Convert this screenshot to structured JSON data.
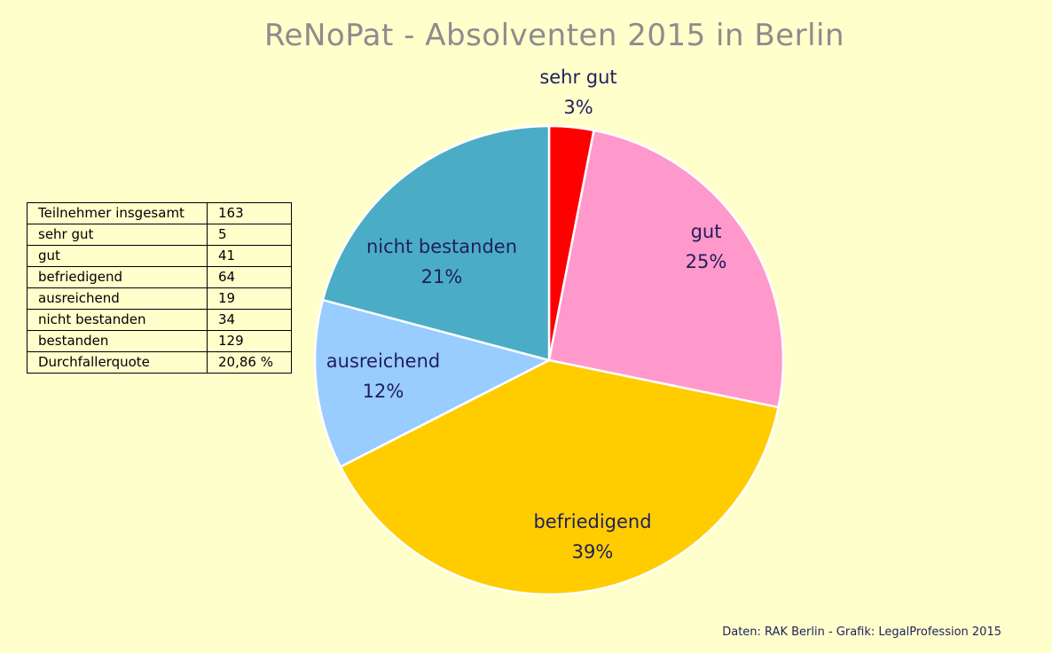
{
  "title": "ReNoPat - Absolventen 2015 in Berlin",
  "stats_table": [
    {
      "label": "Teilnehmer insgesamt",
      "value": "163"
    },
    {
      "label": "sehr gut",
      "value": "5"
    },
    {
      "label": "gut",
      "value": "41"
    },
    {
      "label": "befriedigend",
      "value": "64"
    },
    {
      "label": "ausreichend",
      "value": "19"
    },
    {
      "label": "nicht bestanden",
      "value": "34"
    },
    {
      "label": "bestanden",
      "value": "129"
    },
    {
      "label": "Durchfallerquote",
      "value": "20,86 %"
    }
  ],
  "source": "Daten:  RAK Berlin - Grafik: LegalProfession 2015",
  "chart_data": {
    "type": "pie",
    "title": "ReNoPat - Absolventen 2015 in Berlin",
    "categories": [
      "sehr gut",
      "gut",
      "befriedigend",
      "ausreichend",
      "nicht bestanden"
    ],
    "values": [
      5,
      41,
      64,
      19,
      34
    ],
    "percent_labels": [
      "3%",
      "25%",
      "39%",
      "12%",
      "21%"
    ],
    "colors": [
      "#ff0000",
      "#ff99cc",
      "#ffcc00",
      "#99ccff",
      "#4bacc6"
    ],
    "start_angle": "12 o'clock, clockwise",
    "label_color": "#1f1f5c"
  }
}
